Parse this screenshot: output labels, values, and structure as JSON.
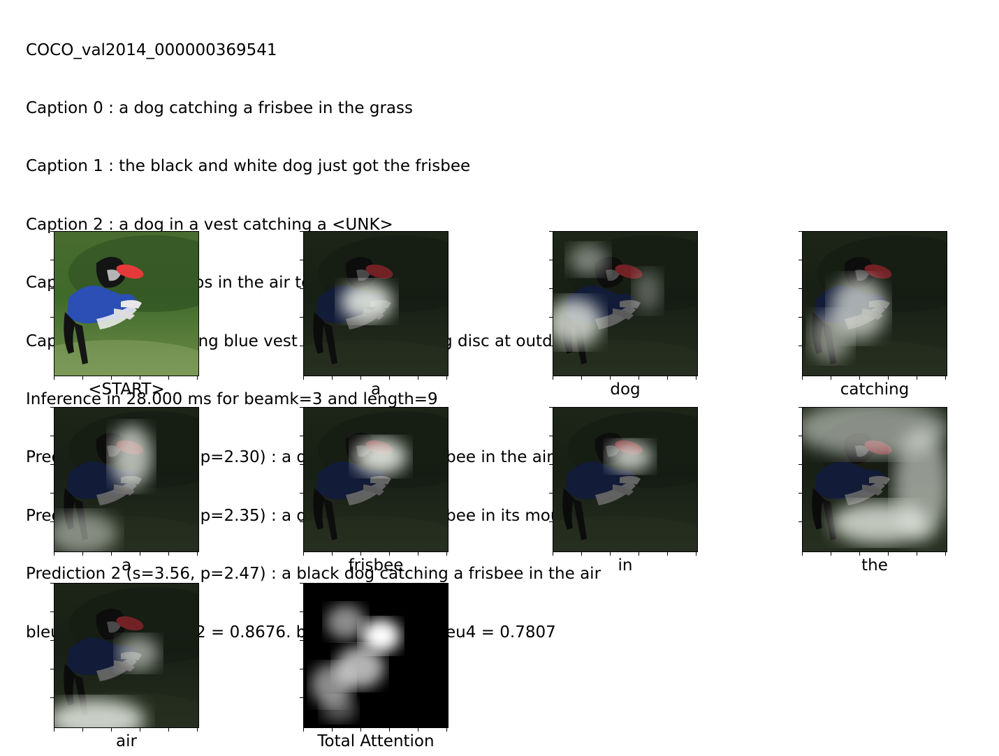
{
  "header": {
    "image_id": "COCO_val2014_000000369541",
    "captions": [
      "Caption 0 : a dog catching a frisbee in the grass",
      "Caption 1 : the black and white dog just got the frisbee",
      "Caption 2 : a dog in a vest catching a <UNK>",
      "Caption 3 : a dig jumps in the air to catch a frisbe",
      "Caption 4 : dog wearing blue vest catching red flying disc at outdoor event"
    ],
    "inference": "Inference in 28.000 ms for beamk=3 and length=9",
    "predictions": [
      "Prediction 0 (s=3.73, p=2.30) : a dog catching a frisbee in the air",
      "Prediction 1 (s=3.57, p=2.35) : a dog catching a frisbee in its mouth",
      "Prediction 2 (s=3.56, p=2.47) : a black dog catching a frisbee in the air"
    ],
    "bleu": "bleu1 = 0.9200. bleu2 = 0.8676. bleu3 = 0.8422. bleu4 = 0.7807"
  },
  "panels": [
    {
      "word": "<START>",
      "kind": "photo"
    },
    {
      "word": "a",
      "kind": "attention"
    },
    {
      "word": "dog",
      "kind": "attention"
    },
    {
      "word": "catching",
      "kind": "attention"
    },
    {
      "word": "a",
      "kind": "attention"
    },
    {
      "word": "frisbee",
      "kind": "attention"
    },
    {
      "word": "in",
      "kind": "attention"
    },
    {
      "word": "the",
      "kind": "attention"
    },
    {
      "word": "air",
      "kind": "attention"
    },
    {
      "word": "Total Attention",
      "kind": "heatmap"
    }
  ]
}
